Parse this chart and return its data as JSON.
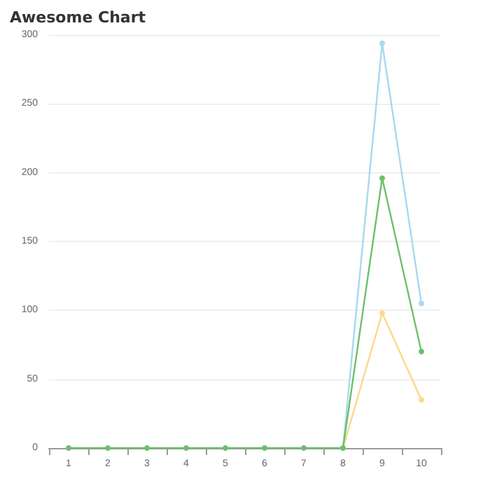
{
  "chart_data": {
    "type": "line",
    "title": "Awesome Chart",
    "categories": [
      "1",
      "2",
      "3",
      "4",
      "5",
      "6",
      "7",
      "8",
      "9",
      "10"
    ],
    "series": [
      {
        "color": "#a8d8f0",
        "values": [
          null,
          null,
          null,
          null,
          null,
          null,
          null,
          0,
          294,
          105
        ]
      },
      {
        "color": "#fcd88a",
        "values": [
          null,
          null,
          null,
          null,
          null,
          null,
          null,
          0,
          98,
          35
        ]
      },
      {
        "color": "#6cc06c",
        "values": [
          0,
          0,
          0,
          0,
          0,
          0,
          0,
          0,
          196,
          70
        ]
      }
    ],
    "ylim": [
      0,
      300
    ],
    "yticks": [
      0,
      50,
      100,
      150,
      200,
      250,
      300
    ],
    "grid": "y",
    "marker": "circle"
  }
}
